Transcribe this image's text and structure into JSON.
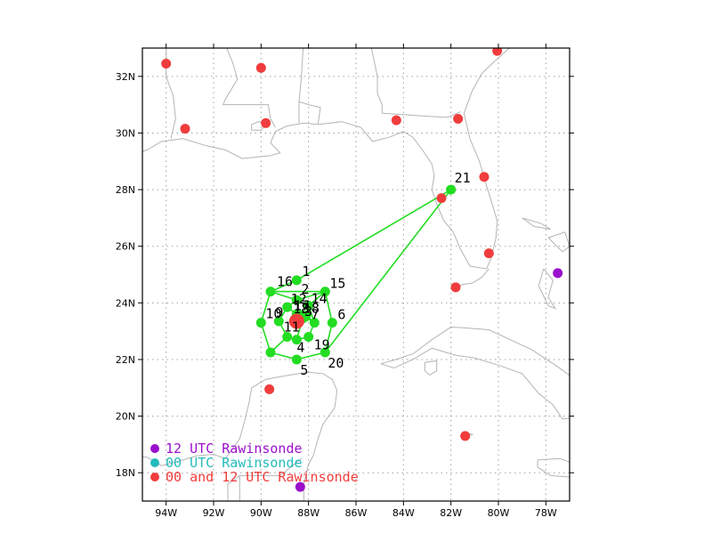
{
  "map": {
    "lon_range": [
      -95,
      -77
    ],
    "lat_range": [
      17,
      33
    ],
    "x_ticks": [
      {
        "lon": -94,
        "label": "94W"
      },
      {
        "lon": -92,
        "label": "92W"
      },
      {
        "lon": -90,
        "label": "90W"
      },
      {
        "lon": -88,
        "label": "88W"
      },
      {
        "lon": -86,
        "label": "86W"
      },
      {
        "lon": -84,
        "label": "84W"
      },
      {
        "lon": -82,
        "label": "82W"
      },
      {
        "lon": -80,
        "label": "80W"
      },
      {
        "lon": -78,
        "label": "78W"
      }
    ],
    "y_ticks": [
      {
        "lat": 18,
        "label": "18N"
      },
      {
        "lat": 20,
        "label": "20N"
      },
      {
        "lat": 22,
        "label": "22N"
      },
      {
        "lat": 24,
        "label": "24N"
      },
      {
        "lat": 26,
        "label": "26N"
      },
      {
        "lat": 28,
        "label": "28N"
      },
      {
        "lat": 30,
        "label": "30N"
      },
      {
        "lat": 32,
        "label": "32N"
      }
    ],
    "grid": true,
    "colors": {
      "land_outline": "#b4b4b4",
      "grid": "#a0a0a0",
      "dropsonde": "#22dd22",
      "track": "#22dd22",
      "rawinsonde_00_12": "#f03c3c",
      "rawinsonde_12": "#9a10cc",
      "rawinsonde_00": "#22bbbb",
      "storm_center": "#f03c3c"
    }
  },
  "storm_center": {
    "lon": -88.5,
    "lat": 23.35
  },
  "dropsondes": [
    {
      "id": "1",
      "lon": -88.5,
      "lat": 24.8
    },
    {
      "id": "2",
      "lon": -88.5,
      "lat": 24.1
    },
    {
      "id": "3",
      "lon": -88.25,
      "lat": 23.45
    },
    {
      "id": "4",
      "lon": -88.5,
      "lat": 22.7
    },
    {
      "id": "5",
      "lon": -88.5,
      "lat": 22.0
    },
    {
      "id": "6",
      "lon": -87.0,
      "lat": 23.3
    },
    {
      "id": "7",
      "lon": -87.75,
      "lat": 23.3
    },
    {
      "id": "8",
      "lon": -88.15,
      "lat": 23.5
    },
    {
      "id": "9",
      "lon": -89.25,
      "lat": 23.35
    },
    {
      "id": "10",
      "lon": -90.0,
      "lat": 23.3
    },
    {
      "id": "11",
      "lon": -88.9,
      "lat": 22.8
    },
    {
      "id": "12",
      "lon": -88.9,
      "lat": 23.85
    },
    {
      "id": "13",
      "lon": -88.5,
      "lat": 23.6
    },
    {
      "id": "14",
      "lon": -88.0,
      "lat": 23.9
    },
    {
      "id": "15",
      "lon": -87.3,
      "lat": 24.4
    },
    {
      "id": "16",
      "lon": -89.6,
      "lat": 24.4
    },
    {
      "id": "17",
      "lon": -88.4,
      "lat": 23.55
    },
    {
      "id": "18",
      "lon": -88.1,
      "lat": 23.55
    },
    {
      "id": "19",
      "lon": -88.0,
      "lat": 22.8
    },
    {
      "id": "20",
      "lon": -87.3,
      "lat": 22.25
    },
    {
      "id": "21",
      "lon": -82.0,
      "lat": 28.0
    },
    {
      "id": "",
      "lon": -89.6,
      "lat": 22.25
    }
  ],
  "track": [
    [
      -82.0,
      28.0
    ],
    [
      -88.5,
      24.8
    ],
    [
      -89.6,
      24.4
    ],
    [
      -87.3,
      24.4
    ],
    [
      -87.0,
      23.3
    ],
    [
      -87.3,
      22.25
    ],
    [
      -88.5,
      22.0
    ],
    [
      -89.6,
      22.25
    ],
    [
      -90.0,
      23.3
    ],
    [
      -89.6,
      24.4
    ],
    [
      -88.5,
      24.1
    ],
    [
      -88.9,
      23.85
    ],
    [
      -89.25,
      23.35
    ],
    [
      -88.9,
      22.8
    ],
    [
      -88.5,
      22.7
    ],
    [
      -88.0,
      22.8
    ],
    [
      -87.75,
      23.3
    ],
    [
      -88.0,
      23.9
    ],
    [
      -88.5,
      24.1
    ],
    [
      -87.3,
      24.4
    ],
    [
      -88.0,
      23.9
    ],
    [
      -88.5,
      23.6
    ],
    [
      -88.9,
      23.85
    ],
    [
      -88.4,
      23.55
    ],
    [
      -88.1,
      23.55
    ],
    [
      -87.75,
      23.3
    ],
    [
      -88.15,
      23.5
    ],
    [
      -88.25,
      23.45
    ],
    [
      -88.5,
      22.7
    ],
    [
      -88.9,
      22.8
    ],
    [
      -89.6,
      22.25
    ],
    [
      -88.5,
      22.0
    ],
    [
      -87.3,
      22.25
    ],
    [
      -82.0,
      28.0
    ]
  ],
  "rawinsondes": [
    {
      "type": "00_12",
      "lon": -94.0,
      "lat": 32.45
    },
    {
      "type": "00_12",
      "lon": -90.0,
      "lat": 32.3
    },
    {
      "type": "00_12",
      "lon": -93.2,
      "lat": 30.15
    },
    {
      "type": "00_12",
      "lon": -89.8,
      "lat": 30.35
    },
    {
      "type": "00_12",
      "lon": -84.3,
      "lat": 30.45
    },
    {
      "type": "00_12",
      "lon": -81.7,
      "lat": 30.5
    },
    {
      "type": "00_12",
      "lon": -80.05,
      "lat": 32.9
    },
    {
      "type": "00_12",
      "lon": -80.6,
      "lat": 28.45
    },
    {
      "type": "00_12",
      "lon": -82.4,
      "lat": 27.7
    },
    {
      "type": "00_12",
      "lon": -80.4,
      "lat": 25.75
    },
    {
      "type": "00_12",
      "lon": -81.8,
      "lat": 24.55
    },
    {
      "type": "00_12",
      "lon": -89.65,
      "lat": 20.95
    },
    {
      "type": "00_12",
      "lon": -81.4,
      "lat": 19.3
    },
    {
      "type": "12",
      "lon": -77.5,
      "lat": 25.05
    },
    {
      "type": "12",
      "lon": -88.35,
      "lat": 17.5
    }
  ],
  "legend": [
    {
      "type": "12",
      "label": "12 UTC Rawinsonde",
      "color": "#9a10cc"
    },
    {
      "type": "00",
      "label": "00 UTC Rawinsonde",
      "color": "#22bbbb"
    },
    {
      "type": "00_12",
      "label": "00 and 12 UTC Rawinsonde",
      "color": "#f03c3c"
    }
  ]
}
